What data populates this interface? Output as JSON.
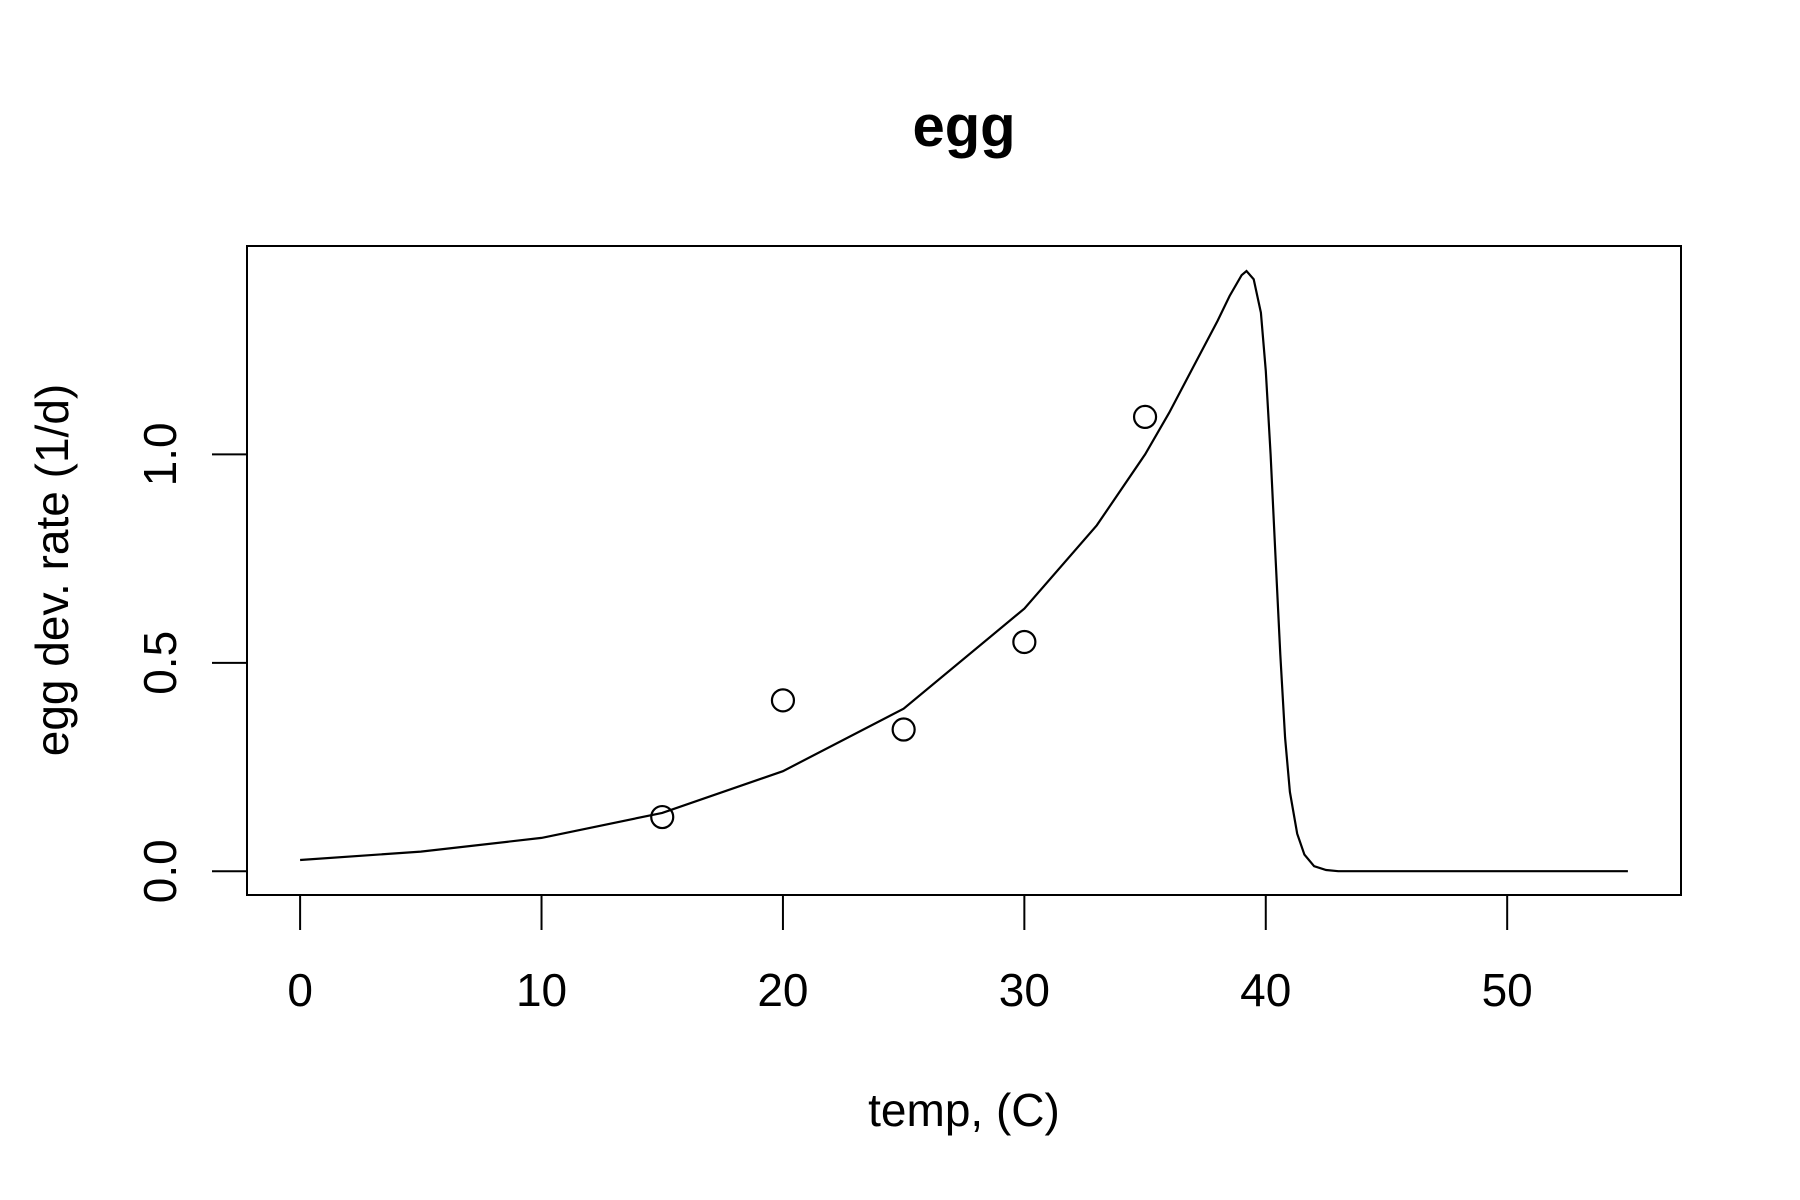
{
  "chart_data": {
    "type": "scatter",
    "title": "egg",
    "xlabel": "temp, (C)",
    "ylabel": "egg dev. rate (1/d)",
    "xlim": [
      -2.2,
      57.2
    ],
    "ylim": [
      -0.057,
      1.5
    ],
    "x_ticks": [
      "0",
      "10",
      "20",
      "30",
      "40",
      "50"
    ],
    "y_ticks": [
      "0.0",
      "0.5",
      "1.0"
    ],
    "grid": false,
    "legend": "none",
    "points": [
      {
        "x": 15,
        "y": 0.13
      },
      {
        "x": 20,
        "y": 0.41
      },
      {
        "x": 25,
        "y": 0.34
      },
      {
        "x": 30,
        "y": 0.55
      },
      {
        "x": 35,
        "y": 1.09
      }
    ],
    "curve": {
      "x": [
        0,
        5,
        10,
        15,
        20,
        25,
        30,
        33,
        35,
        36,
        37,
        38,
        38.5,
        39,
        39.2,
        39.5,
        39.8,
        40,
        40.2,
        40.4,
        40.6,
        40.8,
        41,
        41.3,
        41.6,
        42,
        42.5,
        43,
        45,
        50,
        55
      ],
      "y": [
        0.027,
        0.047,
        0.08,
        0.14,
        0.24,
        0.39,
        0.63,
        0.83,
        1.0,
        1.1,
        1.21,
        1.32,
        1.38,
        1.43,
        1.44,
        1.42,
        1.34,
        1.2,
        1.0,
        0.76,
        0.52,
        0.32,
        0.19,
        0.09,
        0.04,
        0.012,
        0.003,
        0.0,
        0.0,
        0.0,
        0.0
      ]
    }
  }
}
